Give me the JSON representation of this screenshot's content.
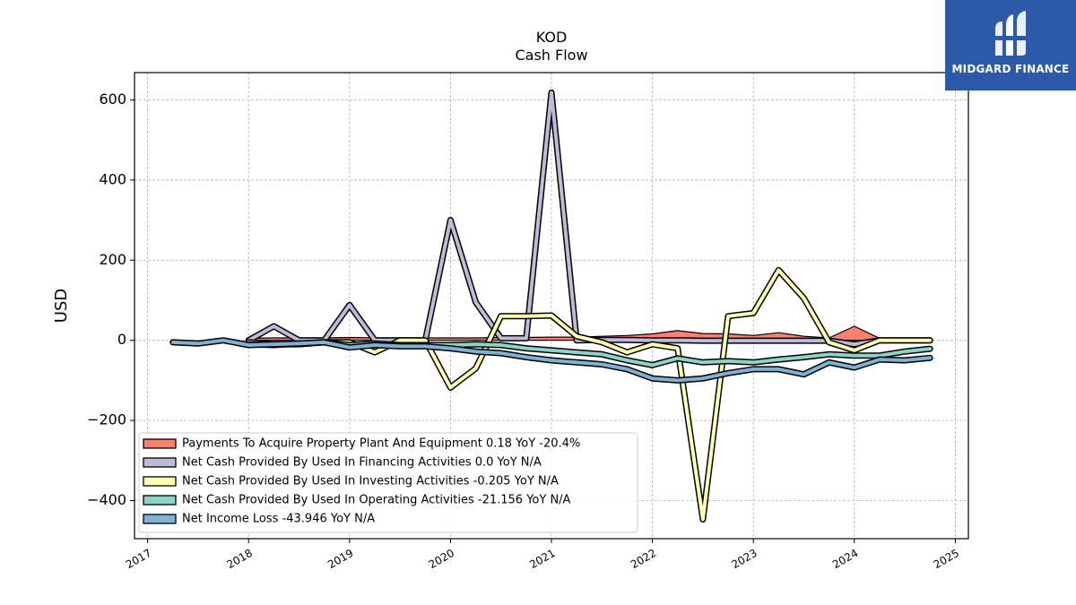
{
  "chart_data": {
    "type": "line",
    "title": "KOD",
    "subtitle": "Cash Flow",
    "ylabel": "USD",
    "xlabel": "",
    "ylim": [
      -495,
      668
    ],
    "xlim": [
      2016.87,
      2025.13
    ],
    "yticks": [
      -400,
      -200,
      0,
      200,
      400,
      600
    ],
    "ytick_labels": [
      "−400",
      "−200",
      "0",
      "200",
      "400",
      "600"
    ],
    "xticks": [
      2017,
      2018,
      2019,
      2020,
      2021,
      2022,
      2023,
      2024,
      2025
    ],
    "xtick_labels": [
      "2017",
      "2018",
      "2019",
      "2020",
      "2021",
      "2022",
      "2023",
      "2024",
      "2025"
    ],
    "grid": true,
    "legend_position": "lower-left",
    "series": [
      {
        "name": "Payments To Acquire Property Plant And Equipment  0.18 YoY -20.4%",
        "color": "#fb8072",
        "style": "area",
        "x": [
          2018.0,
          2018.25,
          2018.5,
          2018.75,
          2019.0,
          2019.25,
          2019.5,
          2019.75,
          2020.0,
          2020.25,
          2020.5,
          2020.75,
          2021.0,
          2021.25,
          2021.5,
          2021.75,
          2022.0,
          2022.25,
          2022.5,
          2022.75,
          2023.0,
          2023.25,
          2023.5,
          2023.75,
          2024.0,
          2024.25,
          2024.5,
          2024.75
        ],
        "values": [
          5,
          6,
          6,
          6,
          7,
          6,
          6,
          6,
          6,
          6,
          7,
          7,
          8,
          8,
          10,
          12,
          16,
          24,
          17,
          16,
          12,
          19,
          10,
          6,
          35,
          5,
          1,
          0.18
        ]
      },
      {
        "name": "Net Cash Provided By Used In Financing Activities  0.0 YoY N/A",
        "color": "#bebada",
        "style": "line",
        "x": [
          2018.0,
          2018.25,
          2018.5,
          2018.75,
          2019.0,
          2019.25,
          2019.5,
          2019.75,
          2020.0,
          2020.25,
          2020.5,
          2020.75,
          2021.0,
          2021.25,
          2021.5,
          2021.75,
          2022.0,
          2022.25,
          2022.5,
          2022.75,
          2023.0,
          2023.25,
          2023.5,
          2023.75,
          2024.0,
          2024.25,
          2024.5,
          2024.75
        ],
        "values": [
          0,
          35,
          0,
          0,
          88,
          0,
          0,
          0,
          300,
          95,
          5,
          5,
          618,
          0,
          1,
          1,
          0,
          0,
          -1,
          -1,
          -1,
          -1,
          -1,
          -1,
          -10,
          0,
          0,
          0
        ]
      },
      {
        "name": "Net Cash Provided By Used In Investing Activities  -0.205 YoY N/A",
        "color": "#ffffb3",
        "style": "line",
        "x": [
          2018.0,
          2018.25,
          2018.5,
          2018.75,
          2019.0,
          2019.25,
          2019.5,
          2019.75,
          2020.0,
          2020.25,
          2020.5,
          2020.75,
          2021.0,
          2021.25,
          2021.5,
          2021.75,
          2022.0,
          2022.25,
          2022.5,
          2022.75,
          2023.0,
          2023.25,
          2023.5,
          2023.75,
          2024.0,
          2024.25,
          2024.5,
          2024.75
        ],
        "values": [
          -5,
          -10,
          -10,
          -5,
          -5,
          -30,
          0,
          0,
          -118,
          -70,
          60,
          60,
          62,
          10,
          -5,
          -30,
          -10,
          -20,
          -447,
          60,
          68,
          175,
          105,
          -5,
          -25,
          0,
          0,
          -0.205
        ]
      },
      {
        "name": "Net Cash Provided By Used In Operating Activities  -21.156 YoY N/A",
        "color": "#8dd3c7",
        "style": "line",
        "x": [
          2018.0,
          2018.25,
          2018.5,
          2018.75,
          2019.0,
          2019.25,
          2019.5,
          2019.75,
          2020.0,
          2020.25,
          2020.5,
          2020.75,
          2021.0,
          2021.25,
          2021.5,
          2021.75,
          2022.0,
          2022.25,
          2022.5,
          2022.75,
          2023.0,
          2023.25,
          2023.5,
          2023.75,
          2024.0,
          2024.25,
          2024.5,
          2024.75
        ],
        "values": [
          -10,
          -12,
          -8,
          -5,
          -12,
          -8,
          -12,
          -12,
          -12,
          -10,
          -12,
          -20,
          -25,
          -30,
          -35,
          -50,
          -62,
          -45,
          -55,
          -52,
          -55,
          -48,
          -42,
          -35,
          -38,
          -38,
          -28,
          -21.156
        ]
      },
      {
        "name": "Net Income Loss  -43.946 YoY N/A",
        "color": "#80b1d3",
        "style": "line",
        "x": [
          2017.25,
          2017.5,
          2017.75,
          2018.0,
          2018.25,
          2018.5,
          2018.75,
          2019.0,
          2019.25,
          2019.5,
          2019.75,
          2020.0,
          2020.25,
          2020.5,
          2020.75,
          2021.0,
          2021.25,
          2021.5,
          2021.75,
          2022.0,
          2022.25,
          2022.5,
          2022.75,
          2023.0,
          2023.25,
          2023.5,
          2023.75,
          2024.0,
          2024.25,
          2024.5,
          2024.75
        ],
        "values": [
          -5,
          -8,
          0,
          -12,
          -10,
          -8,
          -5,
          -18,
          -12,
          -15,
          -15,
          -20,
          -28,
          -32,
          -42,
          -50,
          -55,
          -60,
          -72,
          -95,
          -100,
          -95,
          -82,
          -72,
          -72,
          -85,
          -55,
          -68,
          -48,
          -50,
          -43.946
        ]
      }
    ]
  },
  "logo": {
    "text": "MIDGARD FINANCE"
  }
}
